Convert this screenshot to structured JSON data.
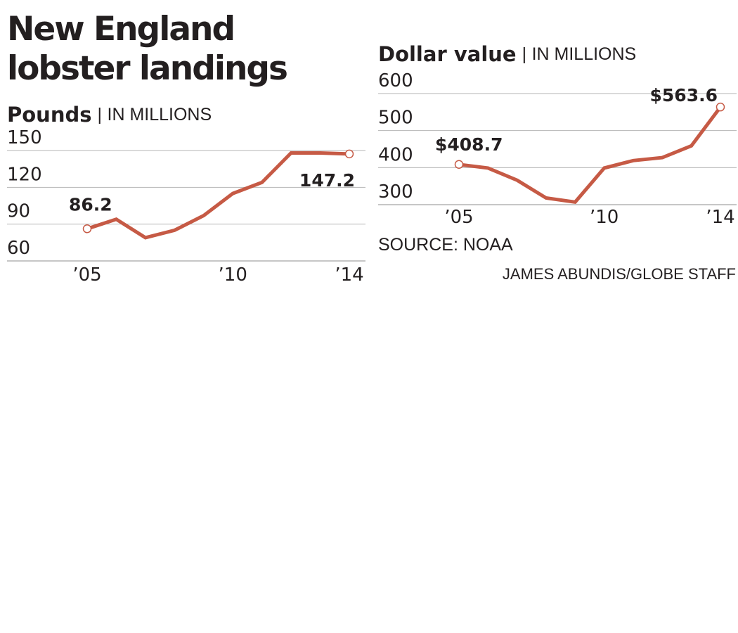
{
  "headline": "New England lobster landings",
  "source": "SOURCE: NOAA",
  "credit": "JAMES ABUNDIS/GLOBE STAFF",
  "line_color": "#c65a45",
  "chart_data": [
    {
      "type": "line",
      "title": "Pounds",
      "unit_label": "IN MILLIONS",
      "x": [
        2005,
        2006,
        2007,
        2008,
        2009,
        2010,
        2011,
        2012,
        2013,
        2014
      ],
      "y": [
        86.2,
        94,
        79,
        85,
        97,
        115,
        124,
        148,
        148,
        147.2
      ],
      "x_ticks": [
        2005,
        2010,
        2014
      ],
      "x_tick_labels": [
        "’05",
        "’10",
        "’14"
      ],
      "y_ticks": [
        150,
        120,
        90,
        60
      ],
      "ylim": [
        60,
        150
      ],
      "labels": [
        {
          "index": 0,
          "text": "86.2"
        },
        {
          "index": 9,
          "text": "147.2"
        }
      ],
      "grid": true
    },
    {
      "type": "line",
      "title": "Dollar value",
      "unit_label": "IN MILLIONS",
      "x": [
        2005,
        2006,
        2007,
        2008,
        2009,
        2010,
        2011,
        2012,
        2013,
        2014
      ],
      "y": [
        408.7,
        399,
        366,
        318,
        307,
        399,
        419,
        427,
        459,
        563.6
      ],
      "x_ticks": [
        2005,
        2010,
        2014
      ],
      "x_tick_labels": [
        "’05",
        "’10",
        "’14"
      ],
      "y_ticks": [
        600,
        500,
        400,
        300
      ],
      "ylim": [
        300,
        600
      ],
      "labels": [
        {
          "index": 0,
          "text": "$408.7"
        },
        {
          "index": 9,
          "text": "$563.6"
        }
      ],
      "grid": true
    }
  ]
}
